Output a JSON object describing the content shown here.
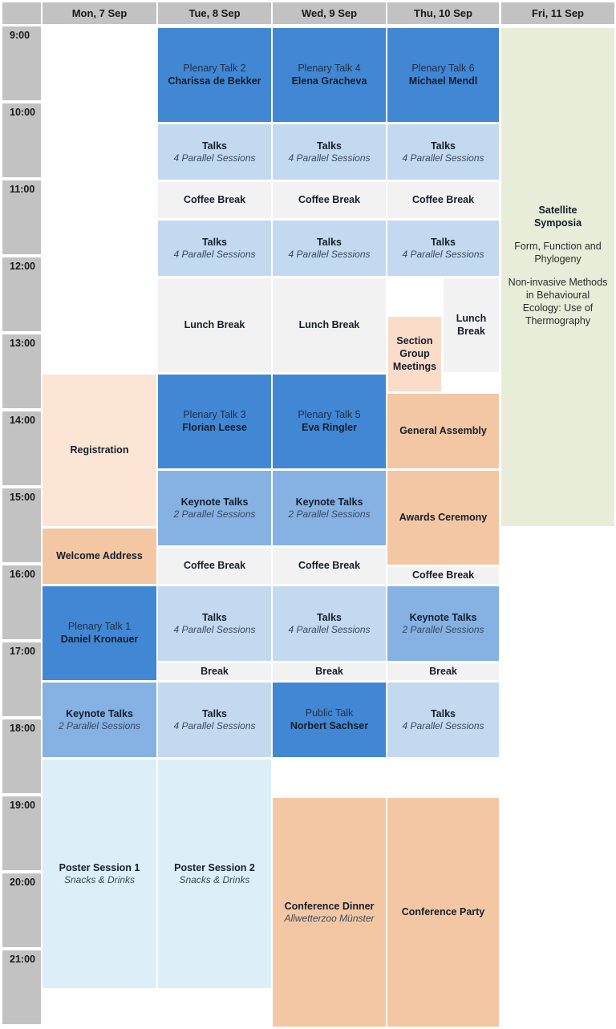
{
  "day_headers": [
    "Mon, 7 Sep",
    "Tue, 8 Sep",
    "Wed, 9 Sep",
    "Thu, 10 Sep",
    "Fri, 11 Sep"
  ],
  "time_labels": [
    "9:00",
    "10:00",
    "11:00",
    "12:00",
    "13:00",
    "14:00",
    "15:00",
    "16:00",
    "17:00",
    "18:00",
    "19:00",
    "20:00",
    "21:00"
  ],
  "colors": {
    "plenary": "#4287d3",
    "keynote": "#85b1e3",
    "talks": "#c3d9f0",
    "poster": "#dceef7",
    "break": "#f2f2f2",
    "satellite": "#e8edd9",
    "social": "#f4c7a4",
    "registration": "#fce5d5",
    "section": "#fbdcc9",
    "header_bg": "#c2c2c2"
  },
  "events": [
    {
      "name": "registration",
      "day": 0,
      "start": "13:30",
      "end": "15:30",
      "color": "registration",
      "lines": [
        {
          "s": "b",
          "t": "Registration"
        }
      ]
    },
    {
      "name": "welcome-address",
      "day": 0,
      "start": "15:30",
      "end": "16:15",
      "color": "social",
      "lines": [
        {
          "s": "b",
          "t": "Welcome Address"
        }
      ]
    },
    {
      "name": "plenary-talk-1",
      "day": 0,
      "start": "16:15",
      "end": "17:30",
      "color": "plenary",
      "lines": [
        {
          "s": "r",
          "t": "Plenary Talk 1"
        },
        {
          "s": "b",
          "t": "Daniel Kronauer"
        }
      ]
    },
    {
      "name": "keynote-talks-mon",
      "day": 0,
      "start": "17:30",
      "end": "18:30",
      "color": "keynote",
      "lines": [
        {
          "s": "b",
          "t": "Keynote Talks"
        },
        {
          "s": "i",
          "t": "2 Parallel Sessions"
        }
      ]
    },
    {
      "name": "poster-session-1",
      "day": 0,
      "start": "18:30",
      "end": "21:30",
      "color": "poster",
      "lines": [
        {
          "s": "b",
          "t": "Poster Session 1"
        },
        {
          "s": "i",
          "t": "Snacks & Drinks"
        }
      ]
    },
    {
      "name": "plenary-talk-2",
      "day": 1,
      "start": "9:00",
      "end": "10:15",
      "color": "plenary",
      "lines": [
        {
          "s": "r",
          "t": "Plenary Talk 2"
        },
        {
          "s": "b",
          "t": "Charissa de Bekker"
        }
      ]
    },
    {
      "name": "talks-tue-1",
      "day": 1,
      "start": "10:15",
      "end": "11:00",
      "color": "talks",
      "lines": [
        {
          "s": "b",
          "t": "Talks"
        },
        {
          "s": "i",
          "t": "4 Parallel Sessions"
        }
      ]
    },
    {
      "name": "coffee-break-tue-1",
      "day": 1,
      "start": "11:00",
      "end": "11:30",
      "color": "break",
      "lines": [
        {
          "s": "b",
          "t": "Coffee Break"
        }
      ]
    },
    {
      "name": "talks-tue-2",
      "day": 1,
      "start": "11:30",
      "end": "12:15",
      "color": "talks",
      "lines": [
        {
          "s": "b",
          "t": "Talks"
        },
        {
          "s": "i",
          "t": "4 Parallel Sessions"
        }
      ]
    },
    {
      "name": "lunch-break-tue",
      "day": 1,
      "start": "12:15",
      "end": "13:30",
      "color": "break",
      "lines": [
        {
          "s": "b",
          "t": "Lunch Break"
        }
      ]
    },
    {
      "name": "plenary-talk-3",
      "day": 1,
      "start": "13:30",
      "end": "14:45",
      "color": "plenary",
      "lines": [
        {
          "s": "r",
          "t": "Plenary Talk 3"
        },
        {
          "s": "b",
          "t": "Florian Leese"
        }
      ]
    },
    {
      "name": "keynote-talks-tue",
      "day": 1,
      "start": "14:45",
      "end": "15:45",
      "color": "keynote",
      "lines": [
        {
          "s": "b",
          "t": "Keynote Talks"
        },
        {
          "s": "i",
          "t": "2 Parallel Sessions"
        }
      ]
    },
    {
      "name": "coffee-break-tue-2",
      "day": 1,
      "start": "15:45",
      "end": "16:15",
      "color": "break",
      "lines": [
        {
          "s": "b",
          "t": "Coffee Break"
        }
      ]
    },
    {
      "name": "talks-tue-3",
      "day": 1,
      "start": "16:15",
      "end": "17:15",
      "color": "talks",
      "lines": [
        {
          "s": "b",
          "t": "Talks"
        },
        {
          "s": "i",
          "t": "4 Parallel Sessions"
        }
      ]
    },
    {
      "name": "break-tue",
      "day": 1,
      "start": "17:15",
      "end": "17:30",
      "color": "break",
      "lines": [
        {
          "s": "b",
          "t": "Break"
        }
      ]
    },
    {
      "name": "talks-tue-4",
      "day": 1,
      "start": "17:30",
      "end": "18:30",
      "color": "talks",
      "lines": [
        {
          "s": "b",
          "t": "Talks"
        },
        {
          "s": "i",
          "t": "4 Parallel Sessions"
        }
      ]
    },
    {
      "name": "poster-session-2",
      "day": 1,
      "start": "18:30",
      "end": "21:30",
      "color": "poster",
      "lines": [
        {
          "s": "b",
          "t": "Poster Session 2"
        },
        {
          "s": "i",
          "t": "Snacks & Drinks"
        }
      ]
    },
    {
      "name": "plenary-talk-4",
      "day": 2,
      "start": "9:00",
      "end": "10:15",
      "color": "plenary",
      "lines": [
        {
          "s": "r",
          "t": "Plenary Talk 4"
        },
        {
          "s": "b",
          "t": "Elena Gracheva"
        }
      ]
    },
    {
      "name": "talks-wed-1",
      "day": 2,
      "start": "10:15",
      "end": "11:00",
      "color": "talks",
      "lines": [
        {
          "s": "b",
          "t": "Talks"
        },
        {
          "s": "i",
          "t": "4 Parallel Sessions"
        }
      ]
    },
    {
      "name": "coffee-break-wed-1",
      "day": 2,
      "start": "11:00",
      "end": "11:30",
      "color": "break",
      "lines": [
        {
          "s": "b",
          "t": "Coffee Break"
        }
      ]
    },
    {
      "name": "talks-wed-2",
      "day": 2,
      "start": "11:30",
      "end": "12:15",
      "color": "talks",
      "lines": [
        {
          "s": "b",
          "t": "Talks"
        },
        {
          "s": "i",
          "t": "4 Parallel Sessions"
        }
      ]
    },
    {
      "name": "lunch-break-wed",
      "day": 2,
      "start": "12:15",
      "end": "13:30",
      "color": "break",
      "lines": [
        {
          "s": "b",
          "t": "Lunch Break"
        }
      ]
    },
    {
      "name": "plenary-talk-5",
      "day": 2,
      "start": "13:30",
      "end": "14:45",
      "color": "plenary",
      "lines": [
        {
          "s": "r",
          "t": "Plenary Talk 5"
        },
        {
          "s": "b",
          "t": "Eva Ringler"
        }
      ]
    },
    {
      "name": "keynote-talks-wed",
      "day": 2,
      "start": "14:45",
      "end": "15:45",
      "color": "keynote",
      "lines": [
        {
          "s": "b",
          "t": "Keynote Talks"
        },
        {
          "s": "i",
          "t": "2 Parallel Sessions"
        }
      ]
    },
    {
      "name": "coffee-break-wed-2",
      "day": 2,
      "start": "15:45",
      "end": "16:15",
      "color": "break",
      "lines": [
        {
          "s": "b",
          "t": "Coffee Break"
        }
      ]
    },
    {
      "name": "talks-wed-3",
      "day": 2,
      "start": "16:15",
      "end": "17:15",
      "color": "talks",
      "lines": [
        {
          "s": "b",
          "t": "Talks"
        },
        {
          "s": "i",
          "t": "4 Parallel Sessions"
        }
      ]
    },
    {
      "name": "break-wed",
      "day": 2,
      "start": "17:15",
      "end": "17:30",
      "color": "break",
      "lines": [
        {
          "s": "b",
          "t": "Break"
        }
      ]
    },
    {
      "name": "public-talk",
      "day": 2,
      "start": "17:30",
      "end": "18:30",
      "color": "plenary",
      "lines": [
        {
          "s": "r",
          "t": "Public Talk"
        },
        {
          "s": "b",
          "t": "Norbert Sachser"
        }
      ]
    },
    {
      "name": "conference-dinner",
      "day": 2,
      "start": "19:00",
      "end": "22:00",
      "color": "social",
      "lines": [
        {
          "s": "b",
          "t": "Conference Dinner"
        },
        {
          "s": "i",
          "t": "Allwetterzoo Münster"
        }
      ]
    },
    {
      "name": "plenary-talk-6",
      "day": 3,
      "start": "9:00",
      "end": "10:15",
      "color": "plenary",
      "lines": [
        {
          "s": "r",
          "t": "Plenary Talk 6"
        },
        {
          "s": "b",
          "t": "Michael Mendl"
        }
      ]
    },
    {
      "name": "talks-thu-1",
      "day": 3,
      "start": "10:15",
      "end": "11:00",
      "color": "talks",
      "lines": [
        {
          "s": "b",
          "t": "Talks"
        },
        {
          "s": "i",
          "t": "4 Parallel Sessions"
        }
      ]
    },
    {
      "name": "coffee-break-thu-1",
      "day": 3,
      "start": "11:00",
      "end": "11:30",
      "color": "break",
      "lines": [
        {
          "s": "b",
          "t": "Coffee Break"
        }
      ]
    },
    {
      "name": "talks-thu-2",
      "day": 3,
      "start": "11:30",
      "end": "12:15",
      "color": "talks",
      "lines": [
        {
          "s": "b",
          "t": "Talks"
        },
        {
          "s": "i",
          "t": "4 Parallel Sessions"
        }
      ]
    },
    {
      "name": "lunch-break-thu",
      "day": 3,
      "start": "12:15",
      "end": "13:30",
      "color": "break",
      "half": "right",
      "lines": [
        {
          "s": "b",
          "t": "Lunch Break"
        }
      ]
    },
    {
      "name": "section-group-meetings",
      "day": 3,
      "start": "12:45",
      "end": "13:45",
      "color": "section",
      "half": "left",
      "lines": [
        {
          "s": "b",
          "t": "Section Group Meetings"
        }
      ]
    },
    {
      "name": "general-assembly",
      "day": 3,
      "start": "13:45",
      "end": "14:45",
      "color": "social",
      "lines": [
        {
          "s": "b",
          "t": "General Assembly"
        }
      ]
    },
    {
      "name": "awards-ceremony",
      "day": 3,
      "start": "14:45",
      "end": "16:00",
      "color": "social",
      "lines": [
        {
          "s": "b",
          "t": "Awards Ceremony"
        }
      ]
    },
    {
      "name": "coffee-break-thu-2",
      "day": 3,
      "start": "16:00",
      "end": "16:15",
      "color": "break",
      "lines": [
        {
          "s": "b",
          "t": "Coffee Break"
        }
      ]
    },
    {
      "name": "keynote-talks-thu",
      "day": 3,
      "start": "16:15",
      "end": "17:15",
      "color": "keynote",
      "lines": [
        {
          "s": "b",
          "t": "Keynote Talks"
        },
        {
          "s": "i",
          "t": "2 Parallel Sessions"
        }
      ]
    },
    {
      "name": "break-thu",
      "day": 3,
      "start": "17:15",
      "end": "17:30",
      "color": "break",
      "lines": [
        {
          "s": "b",
          "t": "Break"
        }
      ]
    },
    {
      "name": "talks-thu-3",
      "day": 3,
      "start": "17:30",
      "end": "18:30",
      "color": "talks",
      "lines": [
        {
          "s": "b",
          "t": "Talks"
        },
        {
          "s": "i",
          "t": "4 Parallel Sessions"
        }
      ]
    },
    {
      "name": "conference-party",
      "day": 3,
      "start": "19:00",
      "end": "22:00",
      "color": "social",
      "lines": [
        {
          "s": "b",
          "t": "Conference Party"
        }
      ]
    },
    {
      "name": "satellite-symposia",
      "day": 4,
      "start": "9:00",
      "end": "15:30",
      "color": "satellite",
      "lines": [
        {
          "s": "b",
          "t": "Satellite"
        },
        {
          "s": "b",
          "t": "Symposia"
        },
        {
          "s": "sp",
          "t": ""
        },
        {
          "s": "p",
          "t": "Form, Function and Phylogeny"
        },
        {
          "s": "sp",
          "t": ""
        },
        {
          "s": "p",
          "t": "Non-invasive Methods in Behavioural Ecology: Use of Thermography"
        }
      ]
    }
  ]
}
